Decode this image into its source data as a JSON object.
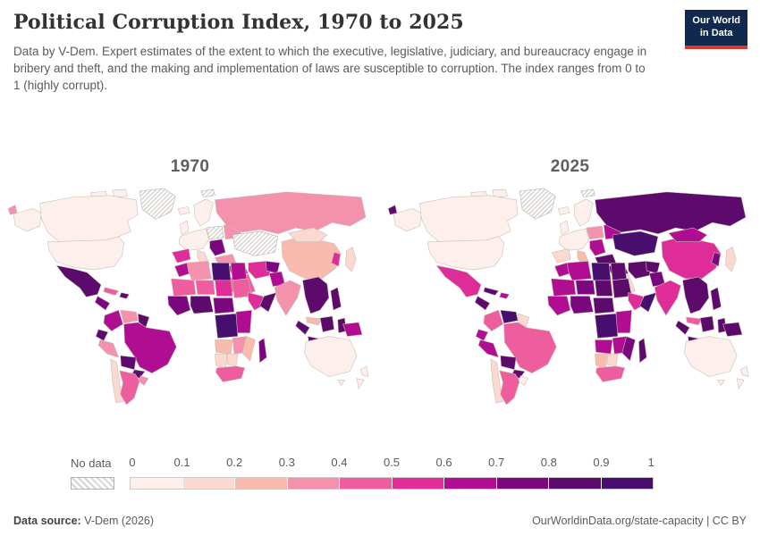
{
  "header": {
    "title": "Political Corruption Index, 1970 to 2025",
    "subtitle": "Data by V-Dem. Expert estimates of the extent to which the executive, legislative, judiciary, and bureaucracy engage in bribery and theft, and the making and implementation of laws are susceptible to corruption. The index ranges from 0 to 1 (highly corrupt).",
    "logo": {
      "line1": "Our World",
      "line2": "in Data",
      "bg_color": "#12294e",
      "accent_color": "#d9382d"
    }
  },
  "maps": {
    "panels": [
      {
        "year": "1970"
      },
      {
        "year": "2025"
      }
    ],
    "border_color": "#c9beb8",
    "region_bins": {
      "svalbard": [
        -1,
        -1
      ],
      "greenland": [
        -1,
        -1
      ],
      "iceland": [
        0,
        0
      ],
      "arctic1": [
        0,
        0
      ],
      "arctic2": [
        0,
        0
      ],
      "alaska": [
        0,
        0
      ],
      "chukotka": [
        3,
        8
      ],
      "canada": [
        0,
        0
      ],
      "usa": [
        0,
        0
      ],
      "mexico": [
        8,
        5
      ],
      "centralam": [
        7,
        8
      ],
      "cuba": [
        4,
        8
      ],
      "hispaniola": [
        8,
        6
      ],
      "colombia": [
        6,
        4
      ],
      "venezuela": [
        3,
        9
      ],
      "guyanas": [
        8,
        1
      ],
      "ecuador": [
        8,
        6
      ],
      "peru": [
        3,
        6
      ],
      "brazil": [
        6,
        4
      ],
      "bolivia": [
        8,
        8
      ],
      "paraguay": [
        8,
        8
      ],
      "chile": [
        1,
        1
      ],
      "argentina": [
        4,
        4
      ],
      "uruguay": [
        3,
        0
      ],
      "uk": [
        0,
        0
      ],
      "scandinavia": [
        0,
        0
      ],
      "westeurope": [
        0,
        0
      ],
      "iberia": [
        5,
        1
      ],
      "italy": [
        1,
        2
      ],
      "centraleurope": [
        -1,
        3
      ],
      "balkans": [
        7,
        6
      ],
      "easteurope2": [
        3,
        6
      ],
      "russia": [
        3,
        8
      ],
      "centralasia": [
        -1,
        9
      ],
      "turkey": [
        3,
        8
      ],
      "middleeast": [
        5,
        8
      ],
      "saudi": [
        4,
        1
      ],
      "iran": [
        5,
        8
      ],
      "afghanistan": [
        7,
        8
      ],
      "pakistan": [
        6,
        7
      ],
      "india": [
        3,
        5
      ],
      "china": [
        2,
        5
      ],
      "mongolia": [
        1,
        6
      ],
      "korea": [
        5,
        7
      ],
      "japan": [
        1,
        1
      ],
      "seasia": [
        8,
        8
      ],
      "malaysia": [
        2,
        4
      ],
      "philippines": [
        8,
        8
      ],
      "sumatra": [
        8,
        8
      ],
      "java": [
        8,
        8
      ],
      "borneo": [
        8,
        8
      ],
      "sulawesi": [
        8,
        8
      ],
      "newguinea": [
        6,
        8
      ],
      "morocco": [
        6,
        6
      ],
      "algeria": [
        3,
        6
      ],
      "libya": [
        9,
        9
      ],
      "egypt": [
        6,
        8
      ],
      "sahel_west": [
        4,
        6
      ],
      "sahel_mid": [
        4,
        7
      ],
      "chad": [
        5,
        8
      ],
      "sudan": [
        4,
        8
      ],
      "wa1": [
        7,
        6
      ],
      "wa2": [
        8,
        7
      ],
      "centralafrica": [
        7,
        8
      ],
      "ethiopia": [
        5,
        5
      ],
      "somalia": [
        8,
        9
      ],
      "eastafrica": [
        6,
        6
      ],
      "drc": [
        9,
        9
      ],
      "angola": [
        2,
        6
      ],
      "zambia_zim": [
        3,
        6
      ],
      "mozambique": [
        2,
        7
      ],
      "namibia": [
        1,
        2
      ],
      "botswana": [
        1,
        1
      ],
      "southafrica": [
        4,
        4
      ],
      "madagascar": [
        7,
        8
      ],
      "australia": [
        0,
        0
      ],
      "tasmania": [
        0,
        0
      ],
      "nz": [
        0,
        0
      ],
      "nz2": [
        0,
        0
      ]
    }
  },
  "legend": {
    "no_data_label": "No data",
    "ticks": [
      "0",
      "0.1",
      "0.2",
      "0.3",
      "0.4",
      "0.5",
      "0.6",
      "0.7",
      "0.8",
      "0.9",
      "1"
    ],
    "colors": [
      "#fdf0ec",
      "#fbd9d0",
      "#f8bbae",
      "#f492ae",
      "#ee5d9d",
      "#de2d98",
      "#b10d92",
      "#7a077d",
      "#5c0a6b",
      "#470e6e"
    ]
  },
  "footer": {
    "source_label": "Data source:",
    "source_value": " V-Dem (2026)",
    "right_text": "OurWorldinData.org/state-capacity | CC BY"
  },
  "chart_data": {
    "type": "choropleth",
    "title": "Political Corruption Index, 1970 to 2025",
    "value_range": [
      0,
      1
    ],
    "bin_edges": [
      0,
      0.1,
      0.2,
      0.3,
      0.4,
      0.5,
      0.6,
      0.7,
      0.8,
      0.9,
      1
    ],
    "bin_colors": [
      "#fdf0ec",
      "#fbd9d0",
      "#f8bbae",
      "#f492ae",
      "#ee5d9d",
      "#de2d98",
      "#b10d92",
      "#7a077d",
      "#5c0a6b",
      "#470e6e"
    ],
    "no_data_style": "diagonal-hatch",
    "panels": [
      {
        "year": "1970",
        "no_data_regions": [
          "Greenland",
          "Poland",
          "Soviet Central Asia"
        ],
        "estimated_values": {
          "United States": 0.05,
          "Canada": 0.05,
          "Mexico": 0.85,
          "Guatemala": 0.75,
          "Cuba": 0.45,
          "Haiti": 0.85,
          "Colombia": 0.65,
          "Venezuela": 0.35,
          "Ecuador": 0.85,
          "Peru": 0.35,
          "Brazil": 0.65,
          "Bolivia": 0.85,
          "Paraguay": 0.85,
          "Chile": 0.15,
          "Argentina": 0.45,
          "Uruguay": 0.35,
          "United Kingdom": 0.05,
          "France": 0.05,
          "Germany": 0.05,
          "Sweden": 0.05,
          "Spain": 0.55,
          "Portugal": 0.65,
          "Italy": 0.15,
          "Yugoslavia": 0.75,
          "Soviet Union": 0.35,
          "Turkey": 0.35,
          "Iraq": 0.55,
          "Saudi Arabia": 0.45,
          "Iran": 0.55,
          "Afghanistan": 0.75,
          "Pakistan": 0.65,
          "India": 0.35,
          "China": 0.25,
          "Mongolia": 0.15,
          "South Korea": 0.55,
          "Japan": 0.15,
          "Thailand": 0.85,
          "Indonesia": 0.85,
          "Philippines": 0.85,
          "Papua New Guinea": 0.65,
          "Morocco": 0.65,
          "Algeria": 0.35,
          "Libya": 0.95,
          "Egypt": 0.65,
          "Sudan": 0.45,
          "Nigeria": 0.85,
          "Ghana": 0.75,
          "Ethiopia": 0.55,
          "Somalia": 0.85,
          "Kenya": 0.65,
          "DR Congo": 0.95,
          "Angola": 0.25,
          "Zambia": 0.35,
          "Mozambique": 0.25,
          "Namibia": 0.15,
          "Botswana": 0.15,
          "South Africa": 0.45,
          "Madagascar": 0.75,
          "Australia": 0.05,
          "New Zealand": 0.05
        }
      },
      {
        "year": "2025",
        "no_data_regions": [
          "Greenland"
        ],
        "estimated_values": {
          "United States": 0.05,
          "Canada": 0.05,
          "Mexico": 0.55,
          "Guatemala": 0.85,
          "Cuba": 0.85,
          "Haiti": 0.65,
          "Colombia": 0.45,
          "Venezuela": 0.95,
          "Ecuador": 0.65,
          "Peru": 0.65,
          "Brazil": 0.45,
          "Bolivia": 0.85,
          "Paraguay": 0.85,
          "Chile": 0.15,
          "Argentina": 0.45,
          "Uruguay": 0.05,
          "United Kingdom": 0.05,
          "France": 0.05,
          "Germany": 0.05,
          "Sweden": 0.05,
          "Spain": 0.15,
          "Portugal": 0.15,
          "Italy": 0.25,
          "Poland": 0.35,
          "Ukraine": 0.65,
          "Hungary": 0.65,
          "Russia": 0.85,
          "Kazakhstan": 0.95,
          "Turkey": 0.85,
          "Iraq": 0.85,
          "Saudi Arabia": 0.15,
          "Iran": 0.85,
          "Afghanistan": 0.85,
          "Pakistan": 0.75,
          "India": 0.55,
          "China": 0.55,
          "Mongolia": 0.65,
          "North Korea": 0.75,
          "Japan": 0.15,
          "Thailand": 0.85,
          "Indonesia": 0.85,
          "Philippines": 0.85,
          "Papua New Guinea": 0.85,
          "Morocco": 0.65,
          "Algeria": 0.65,
          "Libya": 0.95,
          "Egypt": 0.85,
          "Sudan": 0.85,
          "Nigeria": 0.75,
          "Ghana": 0.65,
          "Ethiopia": 0.55,
          "Somalia": 0.95,
          "Kenya": 0.65,
          "DR Congo": 0.95,
          "Angola": 0.65,
          "Zambia": 0.65,
          "Mozambique": 0.75,
          "Namibia": 0.25,
          "Botswana": 0.15,
          "South Africa": 0.45,
          "Madagascar": 0.85,
          "Australia": 0.05,
          "New Zealand": 0.05
        }
      }
    ]
  }
}
